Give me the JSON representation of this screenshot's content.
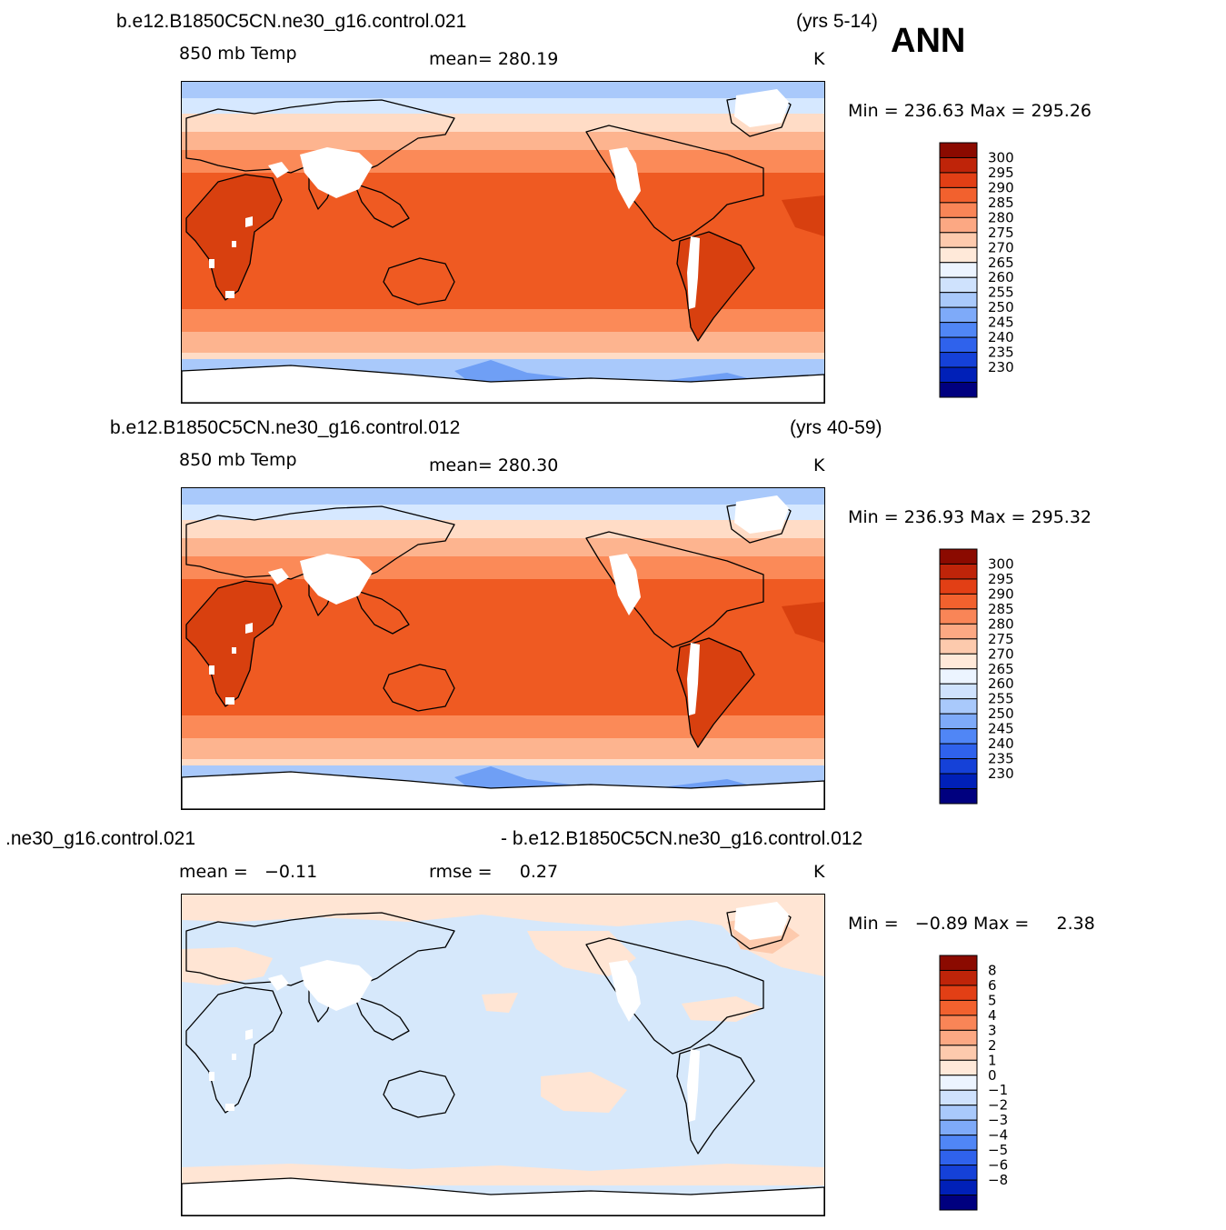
{
  "header": {
    "season": "ANN",
    "palette": {
      "abs": [
        "#00007f",
        "#0020b8",
        "#1541d8",
        "#2f62ec",
        "#5086f6",
        "#7eaaf9",
        "#a9c9fb",
        "#cfe2fd",
        "#ecf4ff",
        "#ffe9d9",
        "#fdcaad",
        "#fca883",
        "#f98557",
        "#f2612e",
        "#e23f15",
        "#bf2409",
        "#8b0a00"
      ],
      "diff": [
        "#00007f",
        "#0020b8",
        "#1541d8",
        "#2f62ec",
        "#5086f6",
        "#7eaaf9",
        "#a9c9fb",
        "#cfe2fd",
        "#ecf4ff",
        "#ffe9d9",
        "#fdcaad",
        "#fca883",
        "#f98557",
        "#f2612e",
        "#e23f15",
        "#bf2409",
        "#8b0a00"
      ],
      "ocean_dark": "#ef5a22",
      "ocean_warm": "#fb8a58",
      "ocean_mid": "#fdb48f",
      "ocean_light": "#ffdcc6",
      "ocean_cool": "#d6e8ff",
      "ocean_cold": "#a9c9fb",
      "ocean_polar": "#6f9ff5",
      "diff_base": "#d6e8fb",
      "diff_warm": "#ffe5d4"
    }
  },
  "chart_data": [
    {
      "type": "heatmap",
      "title": "b.e12.B1850C5CN.ne30_g16.control.021",
      "years": "(yrs 5-14)",
      "variable": "850 mb Temp",
      "stat": "mean= 280.19",
      "units": "K",
      "minmax": "Min = 236.63 Max = 295.26",
      "colorbar_levels": [
        "300",
        "295",
        "290",
        "285",
        "280",
        "275",
        "270",
        "265",
        "260",
        "255",
        "250",
        "245",
        "240",
        "235",
        "230"
      ]
    },
    {
      "type": "heatmap",
      "title": "b.e12.B1850C5CN.ne30_g16.control.012",
      "years": "(yrs 40-59)",
      "variable": "850 mb Temp",
      "stat": "mean= 280.30",
      "units": "K",
      "minmax": "Min = 236.93 Max = 295.32",
      "colorbar_levels": [
        "300",
        "295",
        "290",
        "285",
        "280",
        "275",
        "270",
        "265",
        "260",
        "255",
        "250",
        "245",
        "240",
        "235",
        "230"
      ]
    },
    {
      "type": "heatmap",
      "title_left": ".ne30_g16.control.021",
      "title_right": "- b.e12.B1850C5CN.ne30_g16.control.012",
      "stat_mean": "mean =   −0.11",
      "stat_rmse": "rmse =     0.27",
      "units": "K",
      "minmax": "Min =   −0.89 Max =     2.38",
      "colorbar_levels": [
        "8",
        "6",
        "5",
        "4",
        "3",
        "2",
        "1",
        "0",
        "−1",
        "−2",
        "−3",
        "−4",
        "−5",
        "−6",
        "−8"
      ]
    }
  ]
}
